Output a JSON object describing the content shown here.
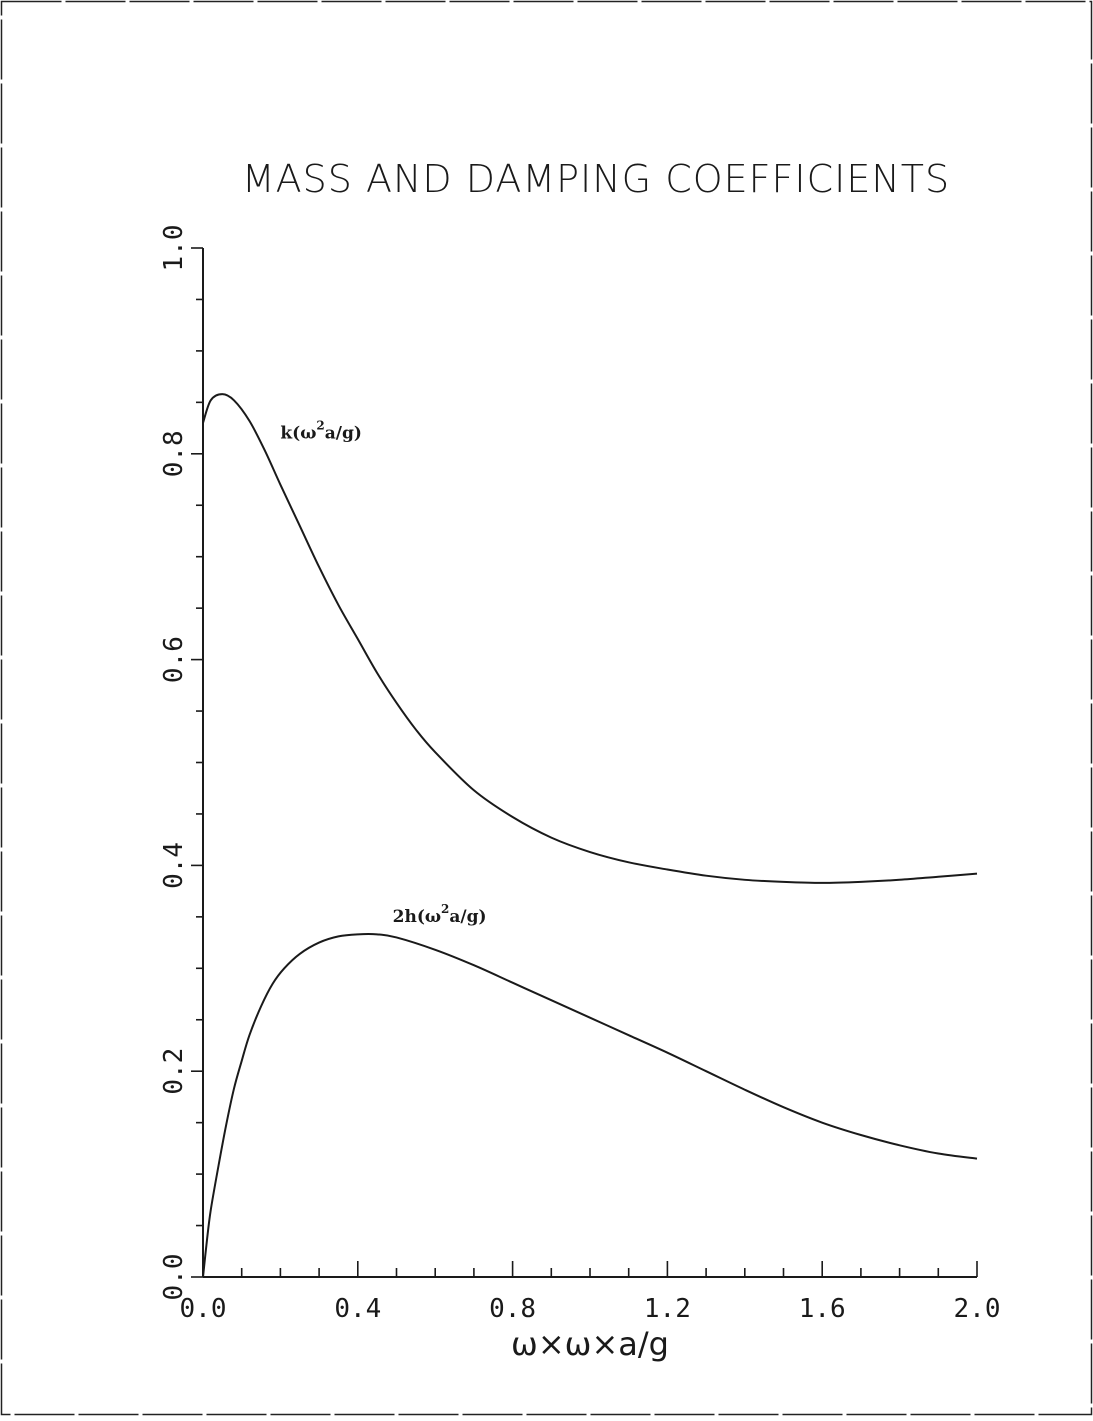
{
  "chart_data": {
    "type": "line",
    "title": "MASS AND DAMPING COEFFICIENTS",
    "xlabel": "ω×ω×a/g",
    "ylabel": "",
    "xlim": [
      0.0,
      2.0
    ],
    "ylim": [
      0.0,
      1.0
    ],
    "x_ticks": [
      "0.0",
      "0.4",
      "0.8",
      "1.2",
      "1.6",
      "2.0"
    ],
    "y_ticks": [
      "0.0",
      "0.2",
      "0.4",
      "0.6",
      "0.8",
      "1.0"
    ],
    "grid": false,
    "legend": "none",
    "series": [
      {
        "name": "k(ω²a/g)",
        "label_main": "k(ω",
        "label_sup": "2",
        "label_end": "a/g)",
        "label_at": [
          0.2,
          0.815
        ],
        "color": "#1a1a1a",
        "x": [
          0.0,
          0.02,
          0.05,
          0.08,
          0.12,
          0.16,
          0.2,
          0.25,
          0.3,
          0.35,
          0.4,
          0.45,
          0.5,
          0.55,
          0.6,
          0.7,
          0.8,
          0.9,
          1.0,
          1.1,
          1.2,
          1.3,
          1.4,
          1.5,
          1.6,
          1.7,
          1.8,
          1.9,
          2.0
        ],
        "y": [
          0.83,
          0.852,
          0.858,
          0.852,
          0.832,
          0.803,
          0.77,
          0.73,
          0.69,
          0.653,
          0.62,
          0.587,
          0.558,
          0.532,
          0.51,
          0.473,
          0.447,
          0.427,
          0.413,
          0.403,
          0.396,
          0.39,
          0.386,
          0.384,
          0.383,
          0.384,
          0.386,
          0.389,
          0.392
        ]
      },
      {
        "name": "2h(ω²a/g)",
        "label_main": "2h(ω",
        "label_sup": "2",
        "label_end": "a/g)",
        "label_at": [
          0.49,
          0.345
        ],
        "color": "#1a1a1a",
        "x": [
          0.0,
          0.01,
          0.02,
          0.04,
          0.06,
          0.08,
          0.1,
          0.12,
          0.15,
          0.18,
          0.21,
          0.25,
          0.3,
          0.35,
          0.4,
          0.45,
          0.5,
          0.6,
          0.7,
          0.8,
          0.9,
          1.0,
          1.1,
          1.2,
          1.3,
          1.4,
          1.5,
          1.6,
          1.7,
          1.8,
          1.9,
          2.0
        ],
        "y": [
          0.0,
          0.035,
          0.065,
          0.108,
          0.148,
          0.183,
          0.21,
          0.235,
          0.263,
          0.285,
          0.3,
          0.314,
          0.325,
          0.331,
          0.333,
          0.333,
          0.33,
          0.318,
          0.303,
          0.286,
          0.269,
          0.252,
          0.235,
          0.218,
          0.2,
          0.182,
          0.165,
          0.15,
          0.138,
          0.128,
          0.12,
          0.115
        ]
      }
    ]
  }
}
